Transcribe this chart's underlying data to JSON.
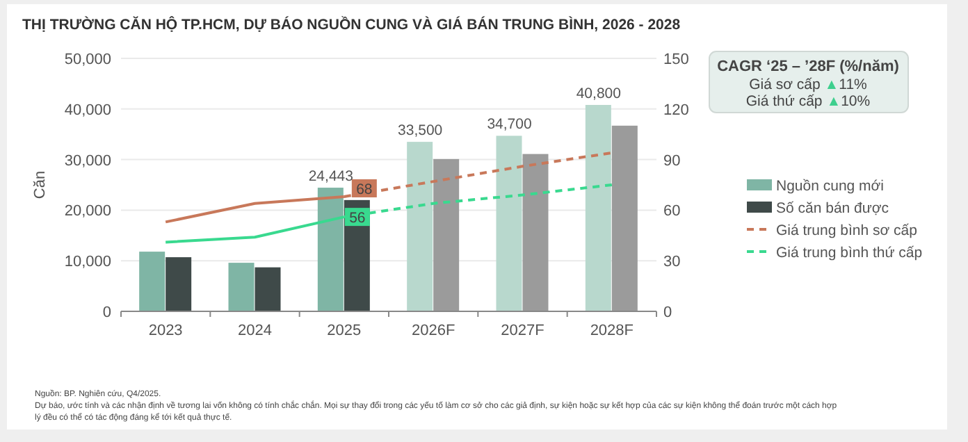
{
  "chart_data": {
    "type": "bar",
    "title": "THỊ TRƯỜNG CĂN HỘ TP.HCM, DỰ BÁO NGUỒN CUNG VÀ GIÁ BÁN TRUNG BÌNH, 2026 - 2028",
    "ylabel": "Căn",
    "categories": [
      "2023",
      "2024",
      "2025",
      "2026F",
      "2027F",
      "2028F"
    ],
    "series": [
      {
        "name": "Nguồn cung mới",
        "color": "#7fb5a5",
        "colors": [
          "#7fb5a5",
          "#7fb5a5",
          "#7fb5a5",
          "#b8d8cd",
          "#b8d8cd",
          "#b8d8cd"
        ],
        "values": [
          11800,
          9600,
          24443,
          33500,
          34700,
          40800
        ],
        "value_labels": [
          null,
          null,
          "24,443",
          "33,500",
          "34,700",
          "40,800"
        ]
      },
      {
        "name": "Số căn bán được",
        "color": "#3f4a49",
        "colors": [
          "#3f4a49",
          "#3f4a49",
          "#3f4a49",
          "#9b9b9b",
          "#9b9b9b",
          "#9b9b9b"
        ],
        "values": [
          10700,
          8700,
          22000,
          30100,
          31100,
          36700
        ]
      },
      {
        "type": "line",
        "axis": "y2",
        "color": "#c8785a",
        "line_style": "solid",
        "values": [
          53,
          64,
          68,
          null,
          null,
          null
        ],
        "value_labels": [
          null,
          null,
          "68",
          null,
          null,
          null
        ]
      },
      {
        "type": "line",
        "axis": "y2",
        "color": "#39d98f",
        "line_style": "solid",
        "values": [
          41,
          44,
          56,
          null,
          null,
          null
        ],
        "value_labels": [
          null,
          null,
          "56",
          null,
          null,
          null
        ]
      },
      {
        "type": "line",
        "axis": "y2",
        "name": "Giá trung bình sơ cấp",
        "color": "#c8785a",
        "line_style": "dashed",
        "values": [
          null,
          null,
          68,
          77,
          86,
          94
        ]
      },
      {
        "type": "line",
        "axis": "y2",
        "name": "Giá trung bình thứ cấp",
        "color": "#39d98f",
        "line_style": "dashed",
        "values": [
          null,
          null,
          56,
          64,
          69,
          75
        ]
      }
    ],
    "ylim": [
      0,
      50000
    ],
    "yticks": [
      {
        "value": 0,
        "label": "0"
      },
      {
        "value": 10000,
        "label": "10,000"
      },
      {
        "value": 20000,
        "label": "20,000"
      },
      {
        "value": 30000,
        "label": "30,000"
      },
      {
        "value": 40000,
        "label": "40,000"
      },
      {
        "value": 50000,
        "label": "50,000"
      }
    ],
    "y2lim": [
      0,
      150
    ],
    "y2ticks": [
      0,
      30,
      60,
      90,
      120,
      150
    ],
    "grid": "y",
    "legend": "right",
    "marker": "none",
    "annotations": [
      "CAGR ‘25 – ’28F (%/năm)",
      "Giá sơ cấp ▲11%",
      "Giá thứ cấp ▲10%",
      "Nguồn: BP. Nghiên cứu, Q4/2025.",
      "Dự báo, ước tính và các nhận định về tương lai vốn không có tính chắc chắn. Mọi sự thay đổi trong các yếu tố làm cơ sở cho các giả định, sự kiện hoặc sự kết hợp của các sự kiện không thể đoán trước một cách hợp",
      "lý đều có thể có tác động đáng kể tới kết quả thực tế."
    ]
  }
}
